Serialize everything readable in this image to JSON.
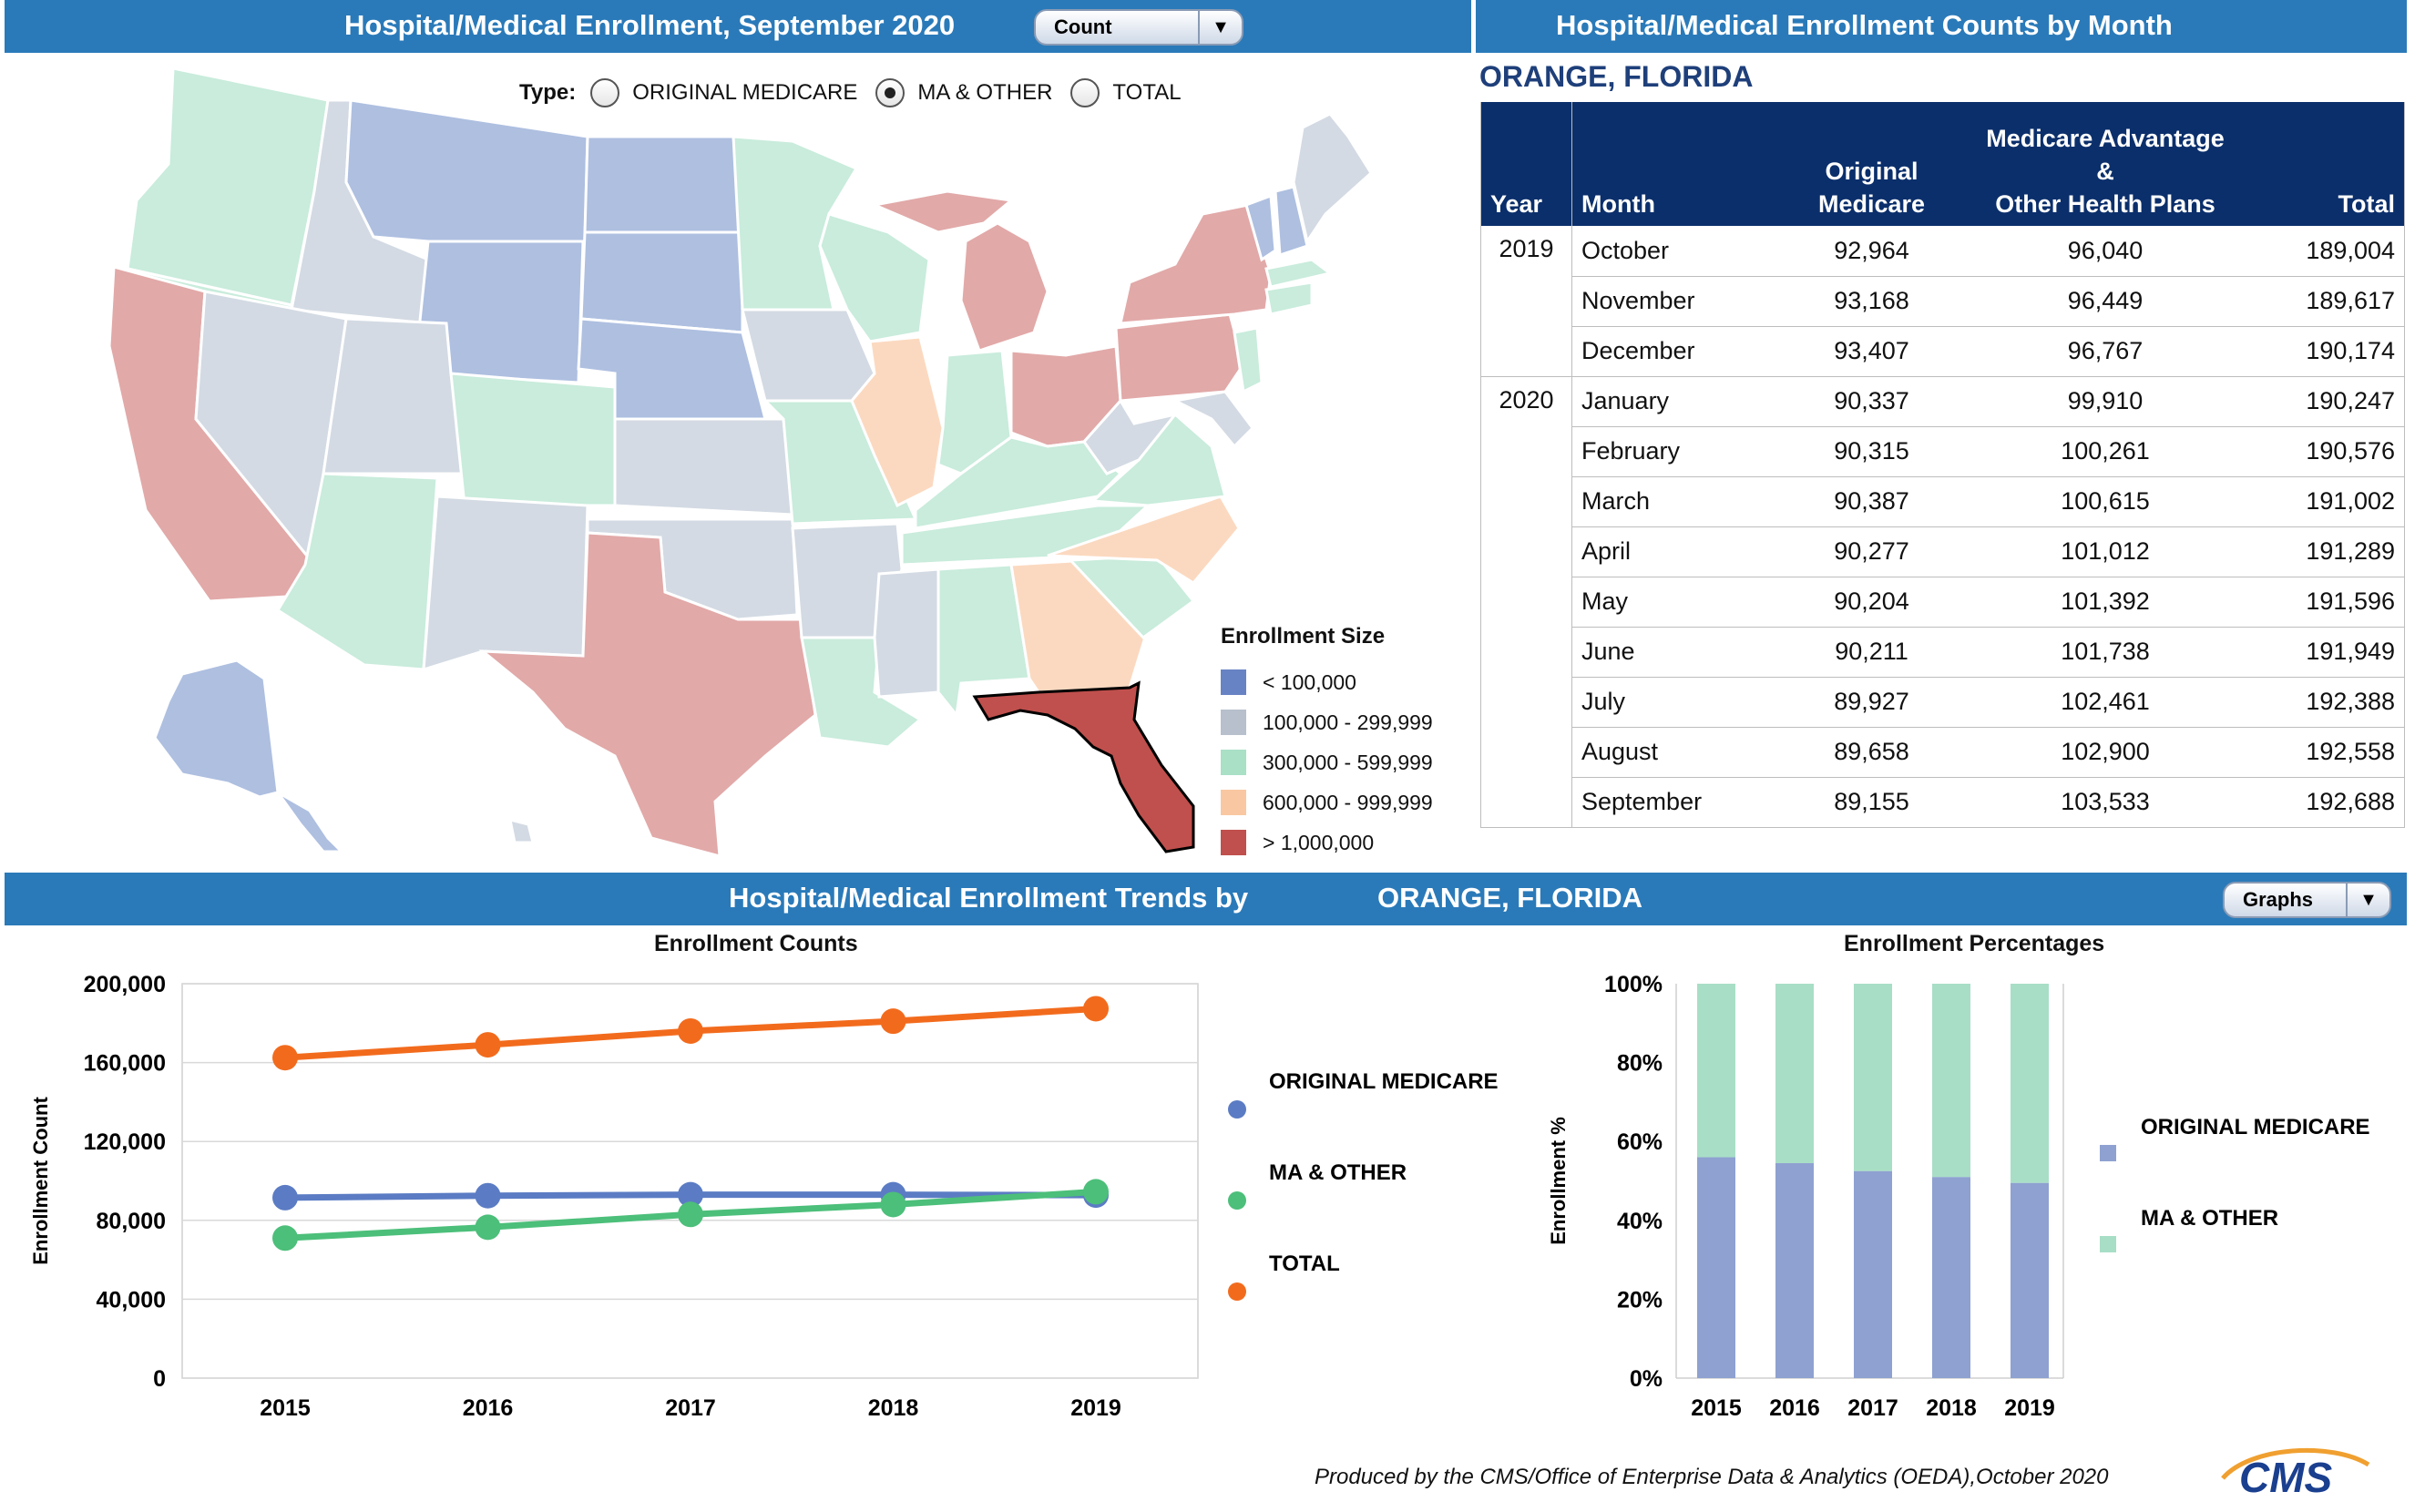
{
  "header_left": {
    "title": "Hospital/Medical Enrollment, September 2020",
    "dropdown_value": "Count"
  },
  "header_right": {
    "title": "Hospital/Medical Enrollment Counts by Month"
  },
  "type_selector": {
    "label": "Type:",
    "options": [
      {
        "label": "ORIGINAL MEDICARE",
        "selected": false
      },
      {
        "label": "MA & OTHER",
        "selected": true
      },
      {
        "label": "TOTAL",
        "selected": false
      }
    ]
  },
  "map": {
    "colors": {
      "lt100k": "#aebfe0",
      "100k_300k": "#d3dae3",
      "300k_600k": "#c9ecdc",
      "600k_1m": "#fbd9c0",
      "gt1m": "#e1a9a8",
      "selected": "#c0504d"
    },
    "selected_state_icon": "florida-highlight"
  },
  "legend": {
    "title": "Enrollment Size",
    "items": [
      {
        "label": "< 100,000",
        "color": "#6883c4"
      },
      {
        "label": "100,000 - 299,999",
        "color": "#b7c0cc"
      },
      {
        "label": "300,000 - 599,999",
        "color": "#a9e0c6"
      },
      {
        "label": "600,000 - 999,999",
        "color": "#f9c8a2"
      },
      {
        "label": "> 1,000,000",
        "color": "#c0504d"
      }
    ]
  },
  "table": {
    "county": "ORANGE, FLORIDA",
    "headers": {
      "year": "Year",
      "month": "Month",
      "orig_l1": "Original",
      "orig_l2": "Medicare",
      "ma_l1": "Medicare Advantage &",
      "ma_l2": "Other Health Plans",
      "total": "Total"
    },
    "rows": [
      {
        "year": "2019",
        "month": "October",
        "orig": "92,964",
        "ma": "96,040",
        "total": "189,004"
      },
      {
        "year": "",
        "month": "November",
        "orig": "93,168",
        "ma": "96,449",
        "total": "189,617"
      },
      {
        "year": "",
        "month": "December",
        "orig": "93,407",
        "ma": "96,767",
        "total": "190,174"
      },
      {
        "year": "2020",
        "month": "January",
        "orig": "90,337",
        "ma": "99,910",
        "total": "190,247"
      },
      {
        "year": "",
        "month": "February",
        "orig": "90,315",
        "ma": "100,261",
        "total": "190,576"
      },
      {
        "year": "",
        "month": "March",
        "orig": "90,387",
        "ma": "100,615",
        "total": "191,002"
      },
      {
        "year": "",
        "month": "April",
        "orig": "90,277",
        "ma": "101,012",
        "total": "191,289"
      },
      {
        "year": "",
        "month": "May",
        "orig": "90,204",
        "ma": "101,392",
        "total": "191,596"
      },
      {
        "year": "",
        "month": "June",
        "orig": "90,211",
        "ma": "101,738",
        "total": "191,949"
      },
      {
        "year": "",
        "month": "July",
        "orig": "89,927",
        "ma": "102,461",
        "total": "192,388"
      },
      {
        "year": "",
        "month": "August",
        "orig": "89,658",
        "ma": "102,900",
        "total": "192,558"
      },
      {
        "year": "",
        "month": "September",
        "orig": "89,155",
        "ma": "103,533",
        "total": "192,688"
      }
    ]
  },
  "trends_bar": {
    "title": "Hospital/Medical Enrollment Trends by",
    "county": "ORANGE, FLORIDA",
    "dropdown_value": "Graphs"
  },
  "chart_data": [
    {
      "type": "line",
      "title": "Enrollment Counts",
      "ylabel": "Enrollment Count",
      "x": [
        "2015",
        "2016",
        "2017",
        "2018",
        "2019"
      ],
      "ylim": [
        0,
        200000
      ],
      "yticks": [
        "0",
        "40,000",
        "80,000",
        "120,000",
        "160,000",
        "200,000"
      ],
      "series": [
        {
          "name": "ORIGINAL MEDICARE",
          "color": "#5b7cc4",
          "values": [
            91500,
            92500,
            93000,
            93000,
            92800
          ]
        },
        {
          "name": "MA & OTHER",
          "color": "#4cbf7a",
          "values": [
            71000,
            76500,
            83000,
            88000,
            94500
          ]
        },
        {
          "name": "TOTAL",
          "color": "#f26b1d",
          "values": [
            162500,
            169000,
            176000,
            181000,
            187300
          ]
        }
      ]
    },
    {
      "type": "bar",
      "stacked": true,
      "title": "Enrollment Percentages",
      "ylabel": "Enrollment %",
      "categories": [
        "2015",
        "2016",
        "2017",
        "2018",
        "2019"
      ],
      "ylim": [
        0,
        100
      ],
      "yticks": [
        "0%",
        "20%",
        "40%",
        "60%",
        "80%",
        "100%"
      ],
      "series": [
        {
          "name": "ORIGINAL MEDICARE",
          "color": "#8ea1d0",
          "values": [
            56,
            54.5,
            52.5,
            51,
            49.5
          ]
        },
        {
          "name": "MA & OTHER",
          "color": "#a8dec6",
          "values": [
            44,
            45.5,
            47.5,
            49,
            50.5
          ]
        }
      ]
    }
  ],
  "footer": {
    "note": "Produced by the CMS/Office of Enterprise Data & Analytics (OEDA),October 2020",
    "logo_text": "CMS"
  }
}
